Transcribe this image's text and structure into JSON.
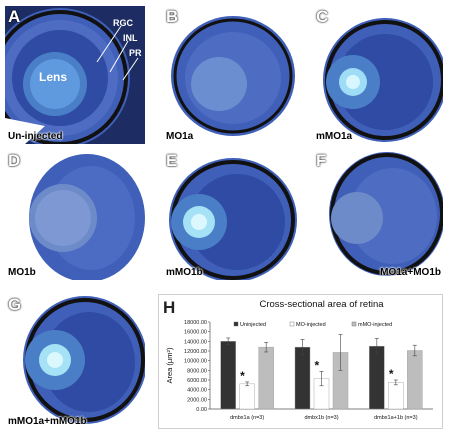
{
  "panels": [
    {
      "id": "A",
      "caption": "Un-injected",
      "lens_label": "Lens",
      "layers": [
        "RGC",
        "INL",
        "PR"
      ]
    },
    {
      "id": "B",
      "caption": "MO1a"
    },
    {
      "id": "C",
      "caption": "mMO1a"
    },
    {
      "id": "D",
      "caption": "MO1b"
    },
    {
      "id": "E",
      "caption": "mMO1b"
    },
    {
      "id": "F",
      "caption": "MO1a+MO1b"
    },
    {
      "id": "G",
      "caption": "mMO1a+mMO1b"
    }
  ],
  "chart_panel_id": "H",
  "colors": {
    "tissue": "#3f5fb8",
    "tissue_dark": "#22337f",
    "pigment": "#1b1b1b",
    "lens": "#4a7fc8",
    "lens_core": "#bfeeff",
    "background": "#ffffff"
  },
  "chart_data": {
    "type": "bar",
    "title": "Cross-sectional area of retina",
    "ylabel": "Area (μm²)",
    "xlabel": "",
    "categories": [
      "dmbx1a (n=3)",
      "dmbx1b (n=3)",
      "dmbx1a+1b (n=3)"
    ],
    "series": [
      {
        "name": "Uninjected",
        "values": [
          14000,
          12800,
          13000
        ],
        "errors": [
          700,
          1600,
          1600
        ],
        "color": "#333333"
      },
      {
        "name": "MO-injected",
        "values": [
          5200,
          6300,
          5500
        ],
        "errors": [
          400,
          1500,
          500
        ],
        "color": "#ffffff"
      },
      {
        "name": "mMO-injected",
        "values": [
          12800,
          11700,
          12100
        ],
        "errors": [
          1000,
          3700,
          1100
        ],
        "color": "#bdbdbd"
      }
    ],
    "significance": [
      "*",
      "*",
      "*"
    ],
    "ylim": [
      0,
      18000
    ],
    "yticks": [
      "0.00",
      "2000.00",
      "4000.00",
      "6000.00",
      "8000.00",
      "10000.00",
      "12000.00",
      "14000.00",
      "16000.00",
      "18000.00"
    ],
    "legend_position": "top",
    "grid": false
  }
}
